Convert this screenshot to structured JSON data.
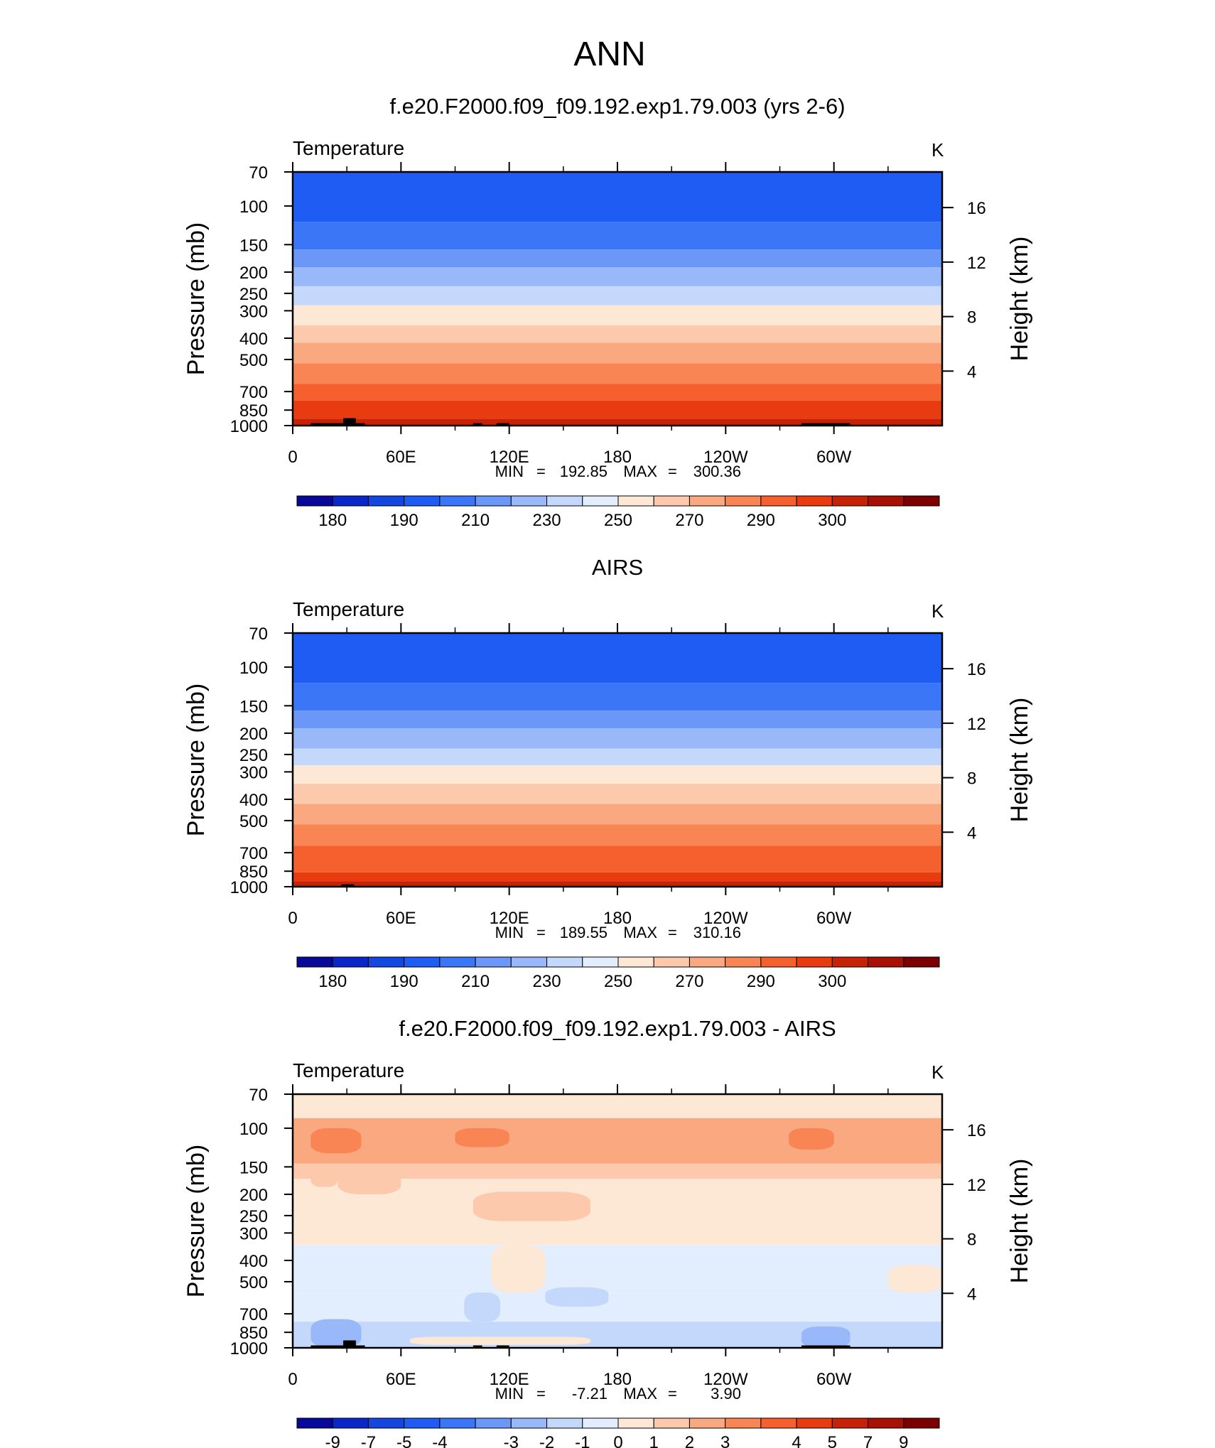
{
  "page_title": "ANN",
  "chart_data": [
    {
      "type": "heatmap",
      "title": "f.e20.F2000.f09_f09.192.exp1.79.003 (yrs 2-6)",
      "left_label": "Temperature",
      "right_label": "K",
      "ylabel": "Pressure (mb)",
      "y2label": "Height (km)",
      "x_ticks": [
        "0",
        "60E",
        "120E",
        "180",
        "120W",
        "60W"
      ],
      "y_ticks": [
        "70",
        "100",
        "150",
        "200",
        "250",
        "300",
        "400",
        "500",
        "700",
        "850",
        "1000"
      ],
      "y2_ticks": [
        "16",
        "12",
        "8",
        "4"
      ],
      "stats": {
        "min_label": "MIN",
        "min": "192.85",
        "max_label": "MAX",
        "max": "300.36"
      },
      "colorbar": {
        "colors": [
          "#08089a",
          "#0a27c8",
          "#1446e0",
          "#1e5cf4",
          "#3c76f8",
          "#6a97f8",
          "#98b8fa",
          "#c4d8fc",
          "#e2eefe",
          "#fde8d6",
          "#fcc9ac",
          "#faa880",
          "#f98454",
          "#f6602e",
          "#e83b10",
          "#c62208",
          "#a81004",
          "#7c0000"
        ],
        "labels": [
          "180",
          "190",
          "210",
          "230",
          "250",
          "270",
          "290",
          "300"
        ]
      },
      "bands": [
        {
          "p": 70,
          "color": "#1e5cf4"
        },
        {
          "p": 118,
          "color": "#3c76f8"
        },
        {
          "p": 158,
          "color": "#6a97f8"
        },
        {
          "p": 190,
          "color": "#98b8fa"
        },
        {
          "p": 232,
          "color": "#c4d8fc"
        },
        {
          "p": 283,
          "color": "#fde8d6"
        },
        {
          "p": 350,
          "color": "#fcc9ac"
        },
        {
          "p": 420,
          "color": "#faa880"
        },
        {
          "p": 520,
          "color": "#f98454"
        },
        {
          "p": 645,
          "color": "#f6602e"
        },
        {
          "p": 770,
          "color": "#e83b10"
        },
        {
          "p": 930,
          "color": "#c62208"
        }
      ],
      "terrain": [
        {
          "lon_start": 10,
          "lon_end": 40,
          "p_top": 975
        },
        {
          "lon_start": 28,
          "lon_end": 35,
          "p_top": 925
        },
        {
          "lon_start": 100,
          "lon_end": 105,
          "p_top": 975
        },
        {
          "lon_start": 113,
          "lon_end": 120,
          "p_top": 975
        },
        {
          "lon_start": 282,
          "lon_end": 309,
          "p_top": 975
        }
      ]
    },
    {
      "type": "heatmap",
      "title": "AIRS",
      "left_label": "Temperature",
      "right_label": "K",
      "ylabel": "Pressure (mb)",
      "y2label": "Height (km)",
      "x_ticks": [
        "0",
        "60E",
        "120E",
        "180",
        "120W",
        "60W"
      ],
      "y_ticks": [
        "70",
        "100",
        "150",
        "200",
        "250",
        "300",
        "400",
        "500",
        "700",
        "850",
        "1000"
      ],
      "y2_ticks": [
        "16",
        "12",
        "8",
        "4"
      ],
      "stats": {
        "min_label": "MIN",
        "min": "189.55",
        "max_label": "MAX",
        "max": "310.16"
      },
      "colorbar": {
        "colors": [
          "#08089a",
          "#0a27c8",
          "#1446e0",
          "#1e5cf4",
          "#3c76f8",
          "#6a97f8",
          "#98b8fa",
          "#c4d8fc",
          "#e2eefe",
          "#fde8d6",
          "#fcc9ac",
          "#faa880",
          "#f98454",
          "#f6602e",
          "#e83b10",
          "#c62208",
          "#a81004",
          "#7c0000"
        ],
        "labels": [
          "180",
          "190",
          "210",
          "230",
          "250",
          "270",
          "290",
          "300"
        ]
      },
      "bands": [
        {
          "p": 70,
          "color": "#1e5cf4"
        },
        {
          "p": 118,
          "color": "#3c76f8"
        },
        {
          "p": 158,
          "color": "#6a97f8"
        },
        {
          "p": 190,
          "color": "#98b8fa"
        },
        {
          "p": 235,
          "color": "#c4d8fc"
        },
        {
          "p": 280,
          "color": "#fde8d6"
        },
        {
          "p": 340,
          "color": "#fcc9ac"
        },
        {
          "p": 420,
          "color": "#faa880"
        },
        {
          "p": 520,
          "color": "#f98454"
        },
        {
          "p": 650,
          "color": "#f6602e"
        },
        {
          "p": 860,
          "color": "#e83b10"
        },
        {
          "p": 945,
          "color": "#c62208"
        }
      ],
      "terrain": [
        {
          "lon_start": 27,
          "lon_end": 34,
          "p_top": 975
        }
      ]
    },
    {
      "type": "heatmap",
      "title": "f.e20.F2000.f09_f09.192.exp1.79.003 - AIRS",
      "left_label": "Temperature",
      "right_label": "K",
      "ylabel": "Pressure (mb)",
      "y2label": "Height (km)",
      "x_ticks": [
        "0",
        "60E",
        "120E",
        "180",
        "120W",
        "60W"
      ],
      "y_ticks": [
        "70",
        "100",
        "150",
        "200",
        "250",
        "300",
        "400",
        "500",
        "700",
        "850",
        "1000"
      ],
      "y2_ticks": [
        "16",
        "12",
        "8",
        "4"
      ],
      "stats": {
        "min_label": "MIN",
        "min": "-7.21",
        "max_label": "MAX",
        "max": "3.90"
      },
      "colorbar": {
        "colors": [
          "#08089a",
          "#0a27c8",
          "#1446e0",
          "#1e5cf4",
          "#3c76f8",
          "#6a97f8",
          "#98b8fa",
          "#c4d8fc",
          "#e2eefe",
          "#fde8d6",
          "#fcc9ac",
          "#faa880",
          "#f98454",
          "#f6602e",
          "#e83b10",
          "#c62208",
          "#a81004",
          "#7c0000"
        ],
        "labels": [
          "-9",
          "-7",
          "-5",
          "-4",
          "-3",
          "-2",
          "-1",
          "0",
          "1",
          "2",
          "3",
          "4",
          "5",
          "7",
          "9"
        ]
      },
      "bands": [
        {
          "p": 70,
          "color": "#fde8d6"
        },
        {
          "p": 90,
          "color": "#faa880"
        },
        {
          "p": 145,
          "color": "#fcc9ac"
        },
        {
          "p": 170,
          "color": "#fde8d6"
        },
        {
          "p": 340,
          "color": "#e2eefe"
        },
        {
          "p": 560,
          "color": "#e2eefe"
        },
        {
          "p": 760,
          "color": "#c4d8fc"
        }
      ],
      "patches": [
        {
          "lon_start": 10,
          "lon_end": 38,
          "p_top": 100,
          "p_bot": 130,
          "color": "#f98454"
        },
        {
          "lon_start": 90,
          "lon_end": 120,
          "p_top": 100,
          "p_bot": 122,
          "color": "#f98454"
        },
        {
          "lon_start": 275,
          "lon_end": 300,
          "p_top": 100,
          "p_bot": 125,
          "color": "#f98454"
        },
        {
          "lon_start": 10,
          "lon_end": 25,
          "p_top": 150,
          "p_bot": 185,
          "color": "#fcc9ac"
        },
        {
          "lon_start": 100,
          "lon_end": 165,
          "p_top": 195,
          "p_bot": 265,
          "color": "#fcc9ac"
        },
        {
          "lon_start": 25,
          "lon_end": 60,
          "p_top": 150,
          "p_bot": 200,
          "color": "#fcc9ac"
        },
        {
          "lon_start": 110,
          "lon_end": 140,
          "p_top": 340,
          "p_bot": 560,
          "color": "#fde8d6"
        },
        {
          "lon_start": 330,
          "lon_end": 360,
          "p_top": 420,
          "p_bot": 560,
          "color": "#fde8d6"
        },
        {
          "lon_start": 140,
          "lon_end": 175,
          "p_top": 530,
          "p_bot": 650,
          "color": "#c4d8fc"
        },
        {
          "lon_start": 95,
          "lon_end": 115,
          "p_top": 560,
          "p_bot": 760,
          "color": "#c4d8fc"
        },
        {
          "lon_start": 65,
          "lon_end": 165,
          "p_top": 890,
          "p_bot": 970,
          "color": "#fde8d6"
        },
        {
          "lon_start": 10,
          "lon_end": 38,
          "p_top": 740,
          "p_bot": 1000,
          "color": "#98b8fa"
        },
        {
          "lon_start": 282,
          "lon_end": 309,
          "p_top": 800,
          "p_bot": 1000,
          "color": "#98b8fa"
        }
      ],
      "terrain": [
        {
          "lon_start": 10,
          "lon_end": 40,
          "p_top": 975
        },
        {
          "lon_start": 28,
          "lon_end": 35,
          "p_top": 925
        },
        {
          "lon_start": 100,
          "lon_end": 105,
          "p_top": 975
        },
        {
          "lon_start": 113,
          "lon_end": 120,
          "p_top": 975
        },
        {
          "lon_start": 282,
          "lon_end": 309,
          "p_top": 975
        }
      ]
    }
  ]
}
